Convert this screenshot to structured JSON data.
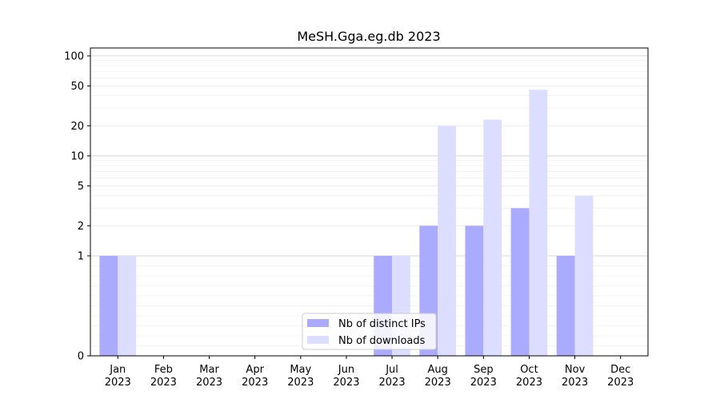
{
  "chart_data": {
    "type": "bar",
    "title": "MeSH.Gga.eg.db 2023",
    "xlabel": "",
    "ylabel": "",
    "y_scale": "symlog",
    "ylim": [
      0,
      120
    ],
    "y_ticks": [
      0,
      1,
      2,
      5,
      10,
      20,
      50,
      100
    ],
    "grid": true,
    "legend_position": "lower-center",
    "categories": [
      "Jan\n2023",
      "Feb\n2023",
      "Mar\n2023",
      "Apr\n2023",
      "May\n2023",
      "Jun\n2023",
      "Jul\n2023",
      "Aug\n2023",
      "Sep\n2023",
      "Oct\n2023",
      "Nov\n2023",
      "Dec\n2023"
    ],
    "series": [
      {
        "name": "Nb of distinct IPs",
        "color": "#aaaaff",
        "values": [
          1,
          0,
          0,
          0,
          0,
          0,
          1,
          2,
          2,
          3,
          1,
          0
        ]
      },
      {
        "name": "Nb of downloads",
        "color": "#ddddff",
        "values": [
          1,
          0,
          0,
          0,
          0,
          0,
          1,
          20,
          23,
          46,
          4,
          0
        ]
      }
    ]
  }
}
